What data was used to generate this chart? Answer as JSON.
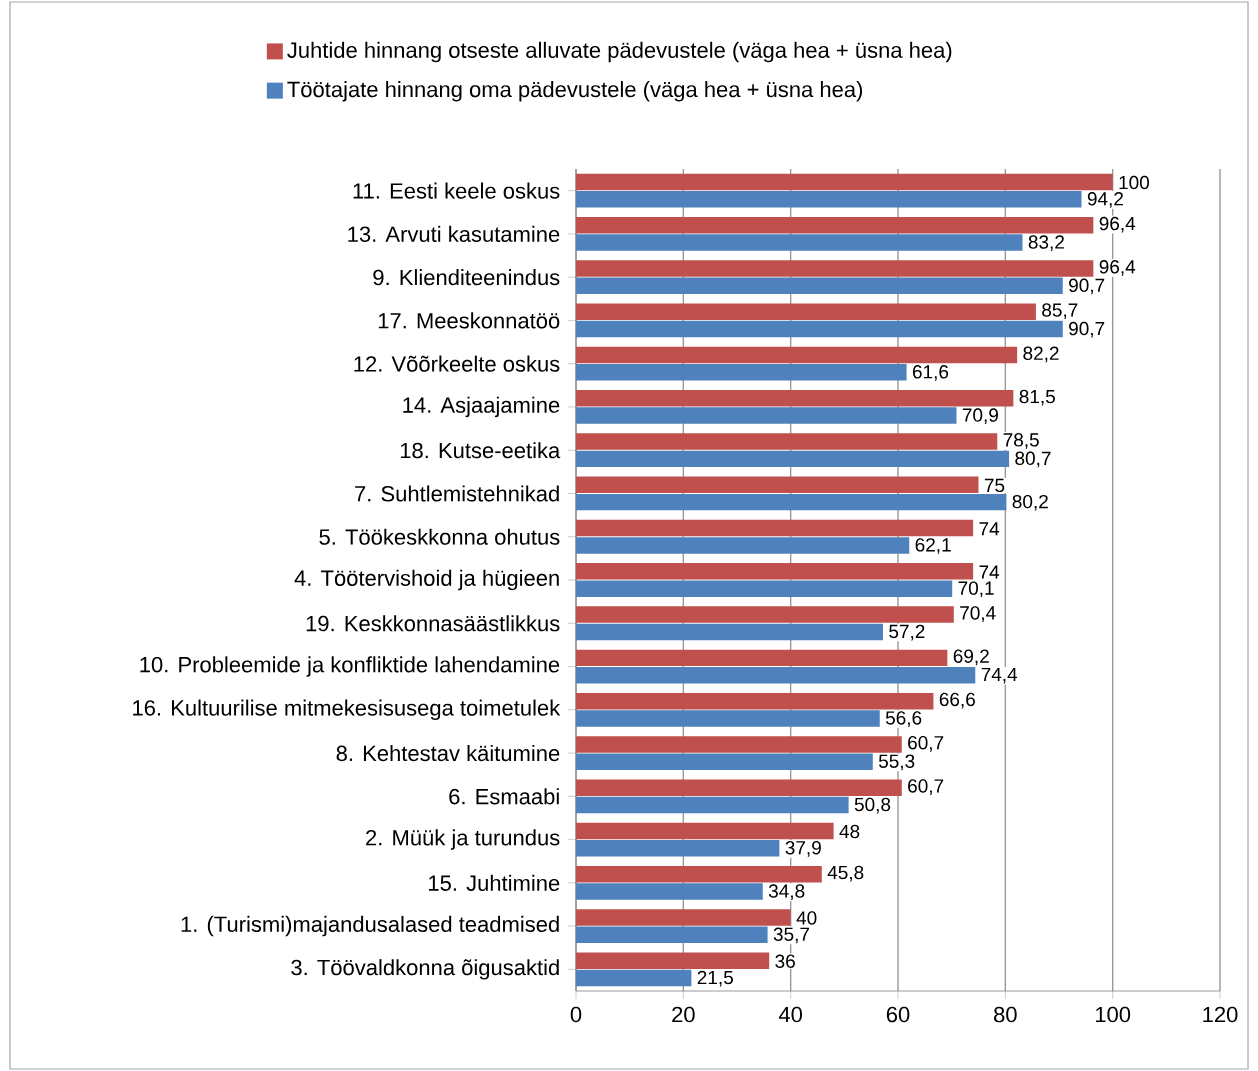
{
  "chart_data": {
    "type": "bar",
    "orientation": "horizontal",
    "categories": [
      "11. Eesti keele oskus",
      "13. Arvuti kasutamine",
      "9. Klienditeenindus",
      "17. Meeskonnatöö",
      "12. Võõrkeelte oskus",
      "14. Asjaajamine",
      "18. Kutse-eetika",
      "7. Suhtlemistehnikad",
      "5. Töökeskkonna ohutus",
      "4. Töötervishoid ja hügieen",
      "19. Keskkonnasäästlikkus",
      "10. Probleemide ja konfliktide lahendamine",
      "16. Kultuurilise mitmekesisusega toimetulek",
      "8. Kehtestav käitumine",
      "6. Esmaabi",
      "2. Müük ja turundus",
      "15. Juhtimine",
      "1. (Turismi)majandusalased teadmised",
      "3. Töövaldkonna õigusaktid"
    ],
    "series": [
      {
        "name": "Juhtide hinnang otseste alluvate pädevustele (väga hea + üsna hea)",
        "color": "#c0504d",
        "values": [
          100,
          96.4,
          96.4,
          85.7,
          82.2,
          81.5,
          78.5,
          75,
          74,
          74,
          70.4,
          69.2,
          66.6,
          60.7,
          60.7,
          48,
          45.8,
          40,
          36
        ],
        "value_labels": [
          "100",
          "96,4",
          "96,4",
          "85,7",
          "82,2",
          "81,5",
          "78,5",
          "75",
          "74",
          "74",
          "70,4",
          "69,2",
          "66,6",
          "60,7",
          "60,7",
          "48",
          "45,8",
          "40",
          "36"
        ]
      },
      {
        "name": "Töötajate hinnang oma pädevustele (väga hea + üsna hea)",
        "color": "#4f81bd",
        "values": [
          94.2,
          83.2,
          90.7,
          90.7,
          61.6,
          70.9,
          80.7,
          80.2,
          62.1,
          70.1,
          57.2,
          74.4,
          56.6,
          55.3,
          50.8,
          37.9,
          34.8,
          35.7,
          21.5
        ],
        "value_labels": [
          "94,2",
          "83,2",
          "90,7",
          "90,7",
          "61,6",
          "70,9",
          "80,7",
          "80,2",
          "62,1",
          "70,1",
          "57,2",
          "74,4",
          "56,6",
          "55,3",
          "50,8",
          "37,9",
          "34,8",
          "35,7",
          "21,5"
        ]
      }
    ],
    "xlim": [
      0,
      120
    ],
    "xticks": [
      0,
      20,
      40,
      60,
      80,
      100,
      120
    ],
    "grid": "x",
    "legend": "top"
  }
}
